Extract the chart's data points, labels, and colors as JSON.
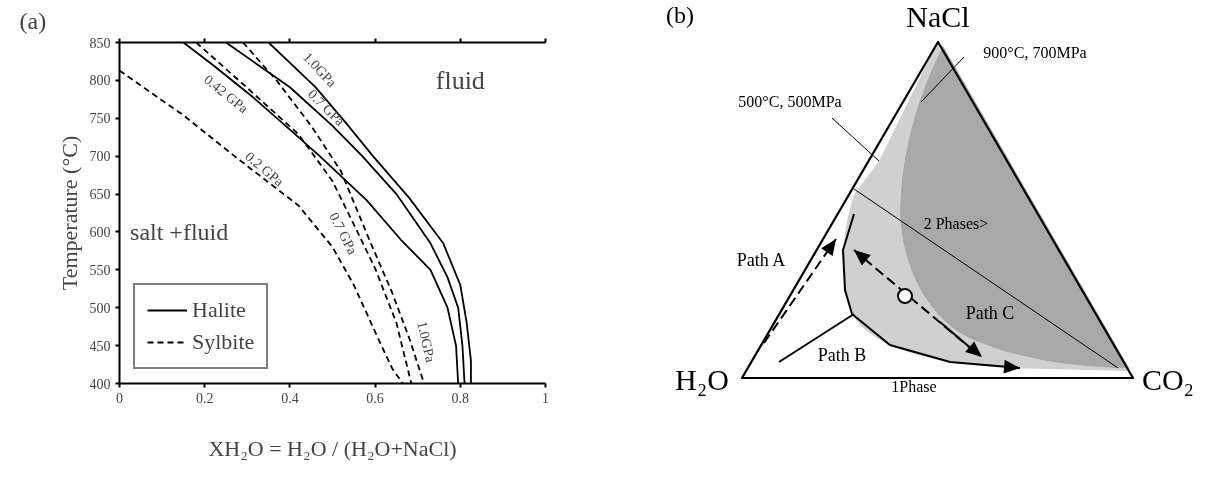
{
  "chart_data": [
    {
      "type": "line",
      "title": "(a)",
      "xlabel": "XH₂O = H₂O / (H₂O+NaCl)",
      "ylabel": "Temperature (°C)",
      "xlim": [
        0,
        1
      ],
      "ylim": [
        400,
        850
      ],
      "xticks": [
        0,
        0.2,
        0.4,
        0.6,
        0.8,
        1
      ],
      "yticks": [
        400,
        450,
        500,
        550,
        600,
        650,
        700,
        750,
        800,
        850
      ],
      "grid": false,
      "legend": "bottom left",
      "marker": "none",
      "series": [
        {
          "name": "Halite",
          "color": "#000000",
          "line_style": "solid",
          "x": [
            0.15,
            0.22,
            0.315,
            0.4,
            0.47,
            0.58,
            0.66,
            0.73,
            0.77,
            0.79,
            0.795
          ],
          "values": [
            850,
            820,
            777,
            735,
            700,
            642,
            590,
            550,
            500,
            450,
            400
          ]
        },
        {
          "color": "#000000",
          "line_style": "solid",
          "x": [
            0.25,
            0.4,
            0.5,
            0.57,
            0.65,
            0.73,
            0.77,
            0.795,
            0.805,
            0.81
          ],
          "values": [
            850,
            791,
            740,
            700,
            650,
            585,
            540,
            500,
            450,
            400
          ]
        },
        {
          "color": "#000000",
          "line_style": "solid",
          "x": [
            0.35,
            0.46,
            0.53,
            0.595,
            0.68,
            0.76,
            0.8,
            0.815,
            0.825,
            0.825
          ],
          "values": [
            850,
            791,
            745,
            700,
            645,
            585,
            530,
            480,
            430,
            400
          ]
        },
        {
          "name": "Sylbite",
          "color": "#000000",
          "line_style": "dashed",
          "x": [
            0,
            0.15,
            0.27,
            0.42,
            0.5,
            0.55,
            0.605,
            0.64,
            0.665
          ],
          "values": [
            813,
            754,
            700,
            635,
            580,
            530,
            462,
            420,
            400
          ]
        },
        {
          "color": "#000000",
          "line_style": "dashed",
          "x": [
            0.18,
            0.3,
            0.42,
            0.5,
            0.55,
            0.6,
            0.65,
            0.685
          ],
          "values": [
            850,
            790,
            729,
            667,
            610,
            552,
            480,
            400
          ]
        },
        {
          "color": "#000000",
          "line_style": "dashed",
          "x": [
            0.29,
            0.37,
            0.45,
            0.52,
            0.59,
            0.64,
            0.68,
            0.715
          ],
          "values": [
            850,
            799,
            740,
            680,
            585,
            520,
            460,
            400
          ]
        }
      ],
      "annotations": [
        "0.42 GPa",
        "1.0GPa",
        "0.7 GPa",
        "0.2 GPa",
        "0.7 GPa",
        "1.0GPa",
        "fluid",
        "salt +fluid"
      ]
    },
    {
      "type": "other",
      "title": "(b)",
      "annotations": [
        "NaCl",
        "H₂O",
        "CO₂",
        "900°C, 700MPa",
        "500°C, 500MPa",
        "2 Phases>",
        "Path A",
        "Path B",
        "Path C",
        "1Phase"
      ]
    }
  ]
}
